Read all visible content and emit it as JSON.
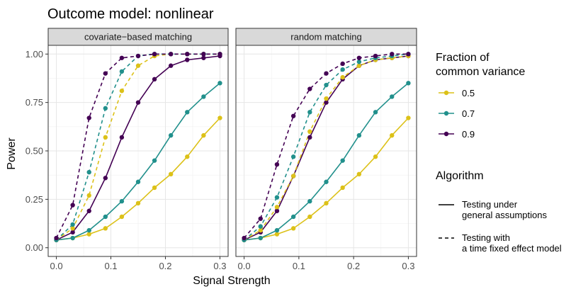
{
  "chart_data": {
    "type": "line",
    "title": "Outcome model: nonlinear",
    "xlabel": "Signal Strength",
    "ylabel": "Power",
    "xlim": [
      0,
      0.3
    ],
    "ylim": [
      0,
      1
    ],
    "x_ticks": [
      "0.0",
      "0.1",
      "0.2",
      "0.3"
    ],
    "y_ticks": [
      "0.00",
      "0.25",
      "0.50",
      "0.75",
      "1.00"
    ],
    "x": [
      0,
      0.03,
      0.06,
      0.09,
      0.12,
      0.15,
      0.18,
      0.21,
      0.24,
      0.27,
      0.3
    ],
    "grid": true,
    "legend_position": "right",
    "colors": {
      "0.5": "#DCC118",
      "0.7": "#21908C",
      "0.9": "#440154"
    },
    "legend_fraction": {
      "title": "Fraction of common variance",
      "title_lines": [
        "Fraction of",
        "common variance"
      ],
      "entries": [
        "0.5",
        "0.7",
        "0.9"
      ]
    },
    "legend_algorithm": {
      "title": "Algorithm",
      "entries": [
        {
          "lines": [
            "Testing under",
            "general assumptions"
          ],
          "linetype": "solid"
        },
        {
          "lines": [
            "Testing with",
            "a time fixed effect model"
          ],
          "linetype": "dashed"
        }
      ]
    },
    "panels": [
      {
        "title": "covariate−based matching",
        "series": [
          {
            "fraction": "0.5",
            "algorithm": "general",
            "values": [
              0.04,
              0.05,
              0.07,
              0.1,
              0.16,
              0.23,
              0.31,
              0.38,
              0.47,
              0.58,
              0.67
            ]
          },
          {
            "fraction": "0.7",
            "algorithm": "general",
            "values": [
              0.04,
              0.05,
              0.09,
              0.16,
              0.24,
              0.34,
              0.45,
              0.58,
              0.7,
              0.78,
              0.85
            ]
          },
          {
            "fraction": "0.9",
            "algorithm": "general",
            "values": [
              0.04,
              0.08,
              0.19,
              0.36,
              0.57,
              0.75,
              0.87,
              0.94,
              0.97,
              0.98,
              0.99
            ]
          },
          {
            "fraction": "0.5",
            "algorithm": "fixed_effect",
            "values": [
              0.04,
              0.1,
              0.27,
              0.57,
              0.81,
              0.94,
              0.99,
              1.0,
              1.0,
              1.0,
              1.0
            ]
          },
          {
            "fraction": "0.7",
            "algorithm": "fixed_effect",
            "values": [
              0.04,
              0.12,
              0.39,
              0.72,
              0.91,
              0.99,
              1.0,
              1.0,
              1.0,
              1.0,
              1.0
            ]
          },
          {
            "fraction": "0.9",
            "algorithm": "fixed_effect",
            "values": [
              0.05,
              0.22,
              0.67,
              0.9,
              0.98,
              0.99,
              1.0,
              1.0,
              1.0,
              1.0,
              1.0
            ]
          }
        ]
      },
      {
        "title": "random matching",
        "series": [
          {
            "fraction": "0.5",
            "algorithm": "general",
            "values": [
              0.04,
              0.05,
              0.07,
              0.1,
              0.16,
              0.23,
              0.31,
              0.38,
              0.47,
              0.58,
              0.67
            ]
          },
          {
            "fraction": "0.7",
            "algorithm": "general",
            "values": [
              0.04,
              0.05,
              0.09,
              0.16,
              0.24,
              0.34,
              0.45,
              0.58,
              0.7,
              0.78,
              0.85
            ]
          },
          {
            "fraction": "0.9",
            "algorithm": "general",
            "values": [
              0.04,
              0.08,
              0.19,
              0.37,
              0.57,
              0.75,
              0.87,
              0.94,
              0.97,
              0.98,
              0.99
            ]
          },
          {
            "fraction": "0.5",
            "algorithm": "fixed_effect",
            "values": [
              0.04,
              0.09,
              0.21,
              0.37,
              0.6,
              0.77,
              0.88,
              0.94,
              0.97,
              0.98,
              0.99
            ]
          },
          {
            "fraction": "0.7",
            "algorithm": "fixed_effect",
            "values": [
              0.04,
              0.11,
              0.26,
              0.47,
              0.7,
              0.84,
              0.92,
              0.96,
              0.98,
              0.99,
              1.0
            ]
          },
          {
            "fraction": "0.9",
            "algorithm": "fixed_effect",
            "values": [
              0.05,
              0.15,
              0.43,
              0.68,
              0.82,
              0.9,
              0.95,
              0.98,
              0.99,
              1.0,
              1.0
            ]
          }
        ]
      }
    ]
  }
}
